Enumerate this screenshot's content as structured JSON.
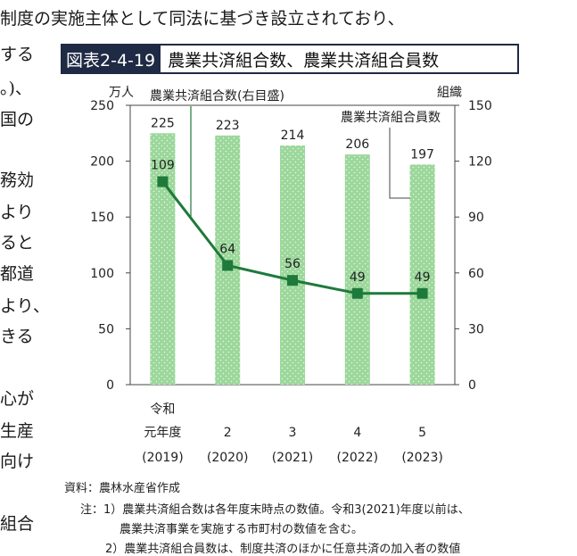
{
  "body_lines": [
    {
      "id": "l1",
      "text": "制度の実施主体として同法に基づき設立されており、"
    },
    {
      "id": "l2",
      "text": "する"
    },
    {
      "id": "l3",
      "text": "。)、"
    },
    {
      "id": "l4",
      "text": "国の"
    },
    {
      "id": "l5",
      "text": "務効"
    },
    {
      "id": "l6",
      "text": "より"
    },
    {
      "id": "l7",
      "text": "ると"
    },
    {
      "id": "l8",
      "text": "都道"
    },
    {
      "id": "l9",
      "text": "より、"
    },
    {
      "id": "l10",
      "text": "きる"
    },
    {
      "id": "l11",
      "text": "心が"
    },
    {
      "id": "l12",
      "text": "生産"
    },
    {
      "id": "l13",
      "text": "向け"
    },
    {
      "id": "l14",
      "text": "組合"
    }
  ],
  "figure": {
    "number": "図表2-4-19",
    "title": "農業共済組合数、農業共済組合員数"
  },
  "chart_data": {
    "type": "bar",
    "categories": [
      {
        "line1": "令和",
        "line2": "元年度",
        "year": "(2019)"
      },
      {
        "line1": "",
        "line2": "2",
        "year": "(2020)"
      },
      {
        "line1": "",
        "line2": "3",
        "year": "(2021)"
      },
      {
        "line1": "",
        "line2": "4",
        "year": "(2022)"
      },
      {
        "line1": "",
        "line2": "5",
        "year": "(2023)"
      }
    ],
    "series": [
      {
        "name": "農業共済組合員数",
        "type": "bar",
        "axis": "left",
        "values": [
          225,
          223,
          214,
          206,
          197
        ],
        "labels": [
          "225",
          "223",
          "214",
          "206",
          "197"
        ],
        "color": "#9bd79a"
      },
      {
        "name": "農業共済組合数(右目盛)",
        "type": "line",
        "axis": "right",
        "values": [
          109,
          64,
          56,
          49,
          49
        ],
        "labels": [
          "109",
          "64",
          "56",
          "49",
          "49"
        ],
        "color": "#1e7a3a"
      }
    ],
    "y_left": {
      "unit": "万人",
      "min": 0,
      "max": 250,
      "ticks": [
        "0",
        "50",
        "100",
        "150",
        "200",
        "250"
      ]
    },
    "y_right": {
      "unit": "組織",
      "min": 0,
      "max": 150,
      "ticks": [
        "0",
        "30",
        "60",
        "90",
        "120",
        "150"
      ]
    },
    "grid": false
  },
  "notes": {
    "source": "資料：農林水産省作成",
    "note1_a": "注：1）農業共済組合数は各年度末時点の数値。令和3(2021)年度以前は、",
    "note1_b": "農業共済事業を実施する市町村の数値を含む。",
    "note2": "2）農業共済組合員数は、制度共済のほかに任意共済の加入者の数値"
  }
}
